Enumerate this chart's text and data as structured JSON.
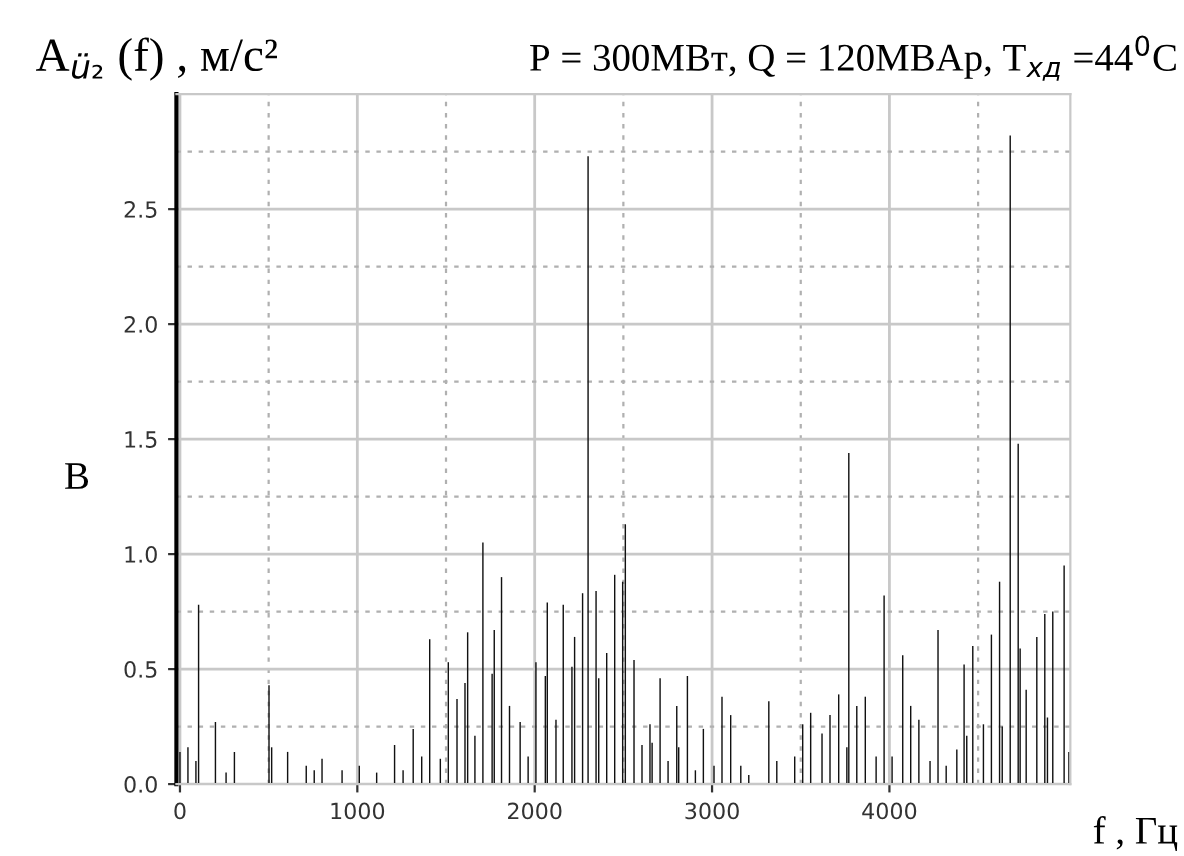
{
  "chart_data": {
    "type": "bar",
    "title": "P = 300МВт, Q = 120МВАр, T$_{хд}$ =44$^{0}$C",
    "ylabel": "A$_{ü₂}$ (f) , м/с²",
    "xlabel": "f , Гц",
    "annotations": [
      "В"
    ],
    "x": [
      0,
      45,
      90,
      105,
      200,
      260,
      307,
      502,
      517,
      607,
      712,
      757,
      801,
      914,
      1011,
      1109,
      1210,
      1258,
      1315,
      1363,
      1408,
      1468,
      1513,
      1562,
      1607,
      1622,
      1663,
      1708,
      1760,
      1772,
      1813,
      1858,
      1918,
      1963,
      2007,
      2060,
      2071,
      2120,
      2161,
      2210,
      2225,
      2270,
      2301,
      2346,
      2361,
      2406,
      2451,
      2496,
      2511,
      2560,
      2605,
      2650,
      2662,
      2707,
      2752,
      2801,
      2812,
      2861,
      2906,
      2951,
      3011,
      3056,
      3105,
      3162,
      3207,
      3320,
      3365,
      3466,
      3511,
      3556,
      3620,
      3665,
      3714,
      3760,
      3771,
      3816,
      3864,
      3925,
      3970,
      4015,
      4075,
      4120,
      4166,
      4229,
      4274,
      4320,
      4380,
      4421,
      4436,
      4470,
      4530,
      4575,
      4621,
      4636,
      4681,
      4726,
      4737,
      4771,
      4831,
      4876,
      4891,
      4921,
      4985,
      5012
    ],
    "values": [
      0.14,
      0.16,
      0.1,
      0.78,
      0.27,
      0.05,
      0.14,
      0.43,
      0.16,
      0.14,
      0.08,
      0.06,
      0.11,
      0.06,
      0.08,
      0.05,
      0.17,
      0.06,
      0.24,
      0.12,
      0.63,
      0.11,
      0.53,
      0.37,
      0.44,
      0.66,
      0.21,
      1.05,
      0.48,
      0.67,
      0.9,
      0.34,
      0.27,
      0.12,
      0.53,
      0.47,
      0.79,
      0.28,
      0.78,
      0.51,
      0.64,
      0.83,
      2.73,
      0.84,
      0.46,
      0.57,
      0.91,
      0.88,
      1.13,
      0.54,
      0.17,
      0.26,
      0.18,
      0.46,
      0.1,
      0.34,
      0.16,
      0.47,
      0.06,
      0.24,
      0.08,
      0.38,
      0.3,
      0.08,
      0.04,
      0.36,
      0.1,
      0.12,
      0.26,
      0.31,
      0.22,
      0.3,
      0.39,
      0.16,
      1.44,
      0.34,
      0.38,
      0.12,
      0.82,
      0.12,
      0.56,
      0.34,
      0.28,
      0.1,
      0.67,
      0.08,
      0.15,
      0.52,
      0.21,
      0.6,
      0.26,
      0.65,
      0.88,
      0.25,
      2.82,
      1.48,
      0.59,
      0.41,
      0.64,
      0.74,
      0.29,
      0.75,
      0.95,
      0.14
    ],
    "color": "#111111",
    "xlim": [
      -20,
      5020
    ],
    "ylim": [
      0,
      3
    ],
    "xticks": [
      0,
      {
        "value": 500,
        "label": null
      },
      1000,
      {
        "value": 1500,
        "label": null
      },
      2000,
      {
        "value": 2500,
        "label": null
      },
      3000,
      {
        "value": 3500,
        "label": null
      },
      4000,
      {
        "value": 4500,
        "label": null
      }
    ],
    "yticks": [
      {
        "value": 0,
        "label": "0.0"
      },
      {
        "value": 0.25,
        "label": null
      },
      0.5,
      {
        "value": 0.75,
        "label": null
      },
      {
        "value": 1,
        "label": "1.0"
      },
      {
        "value": 1.25,
        "label": null
      },
      1.5,
      {
        "value": 1.75,
        "label": null
      },
      {
        "value": 2,
        "label": "2.0"
      },
      {
        "value": 2.25,
        "label": null
      },
      2.5,
      {
        "value": 2.75,
        "label": null
      }
    ],
    "grid": true
  }
}
